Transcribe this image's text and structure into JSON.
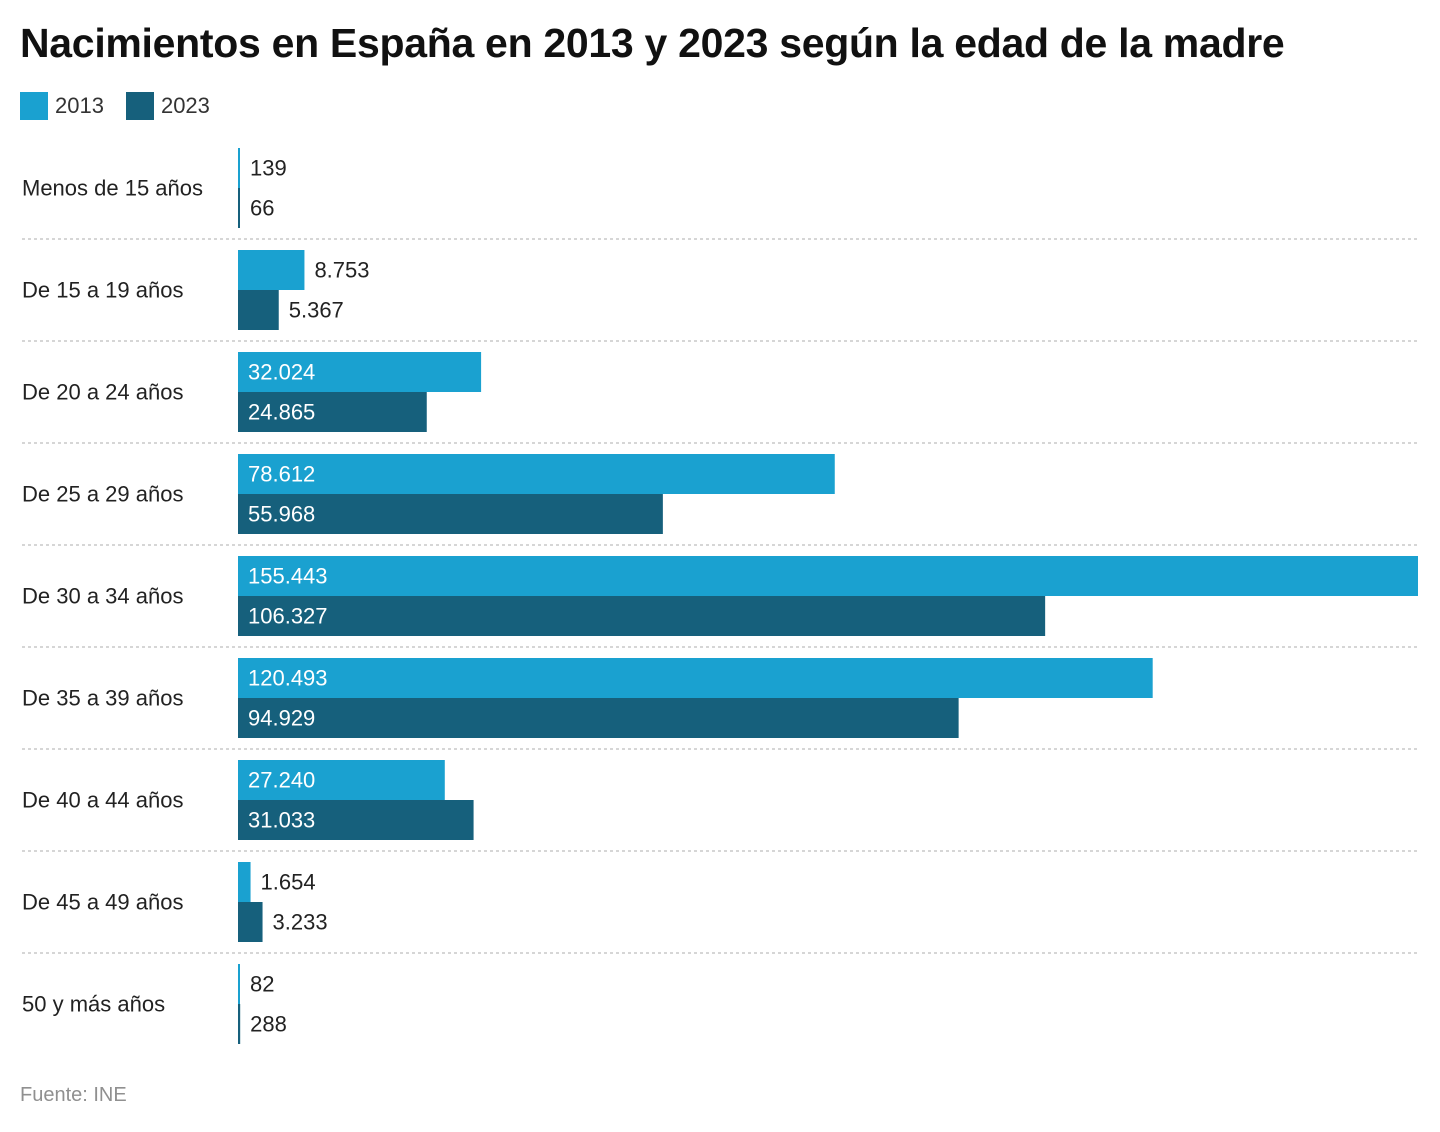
{
  "colors": {
    "series_2013": "#1aa1d0",
    "series_2023": "#16607c"
  },
  "chart_data": {
    "type": "bar",
    "orientation": "horizontal",
    "title": "Nacimientos en España en 2013 y 2023 según la edad de la madre",
    "legend_position": "top-left",
    "grid": false,
    "xlim": [
      0,
      155443
    ],
    "categories": [
      "Menos de 15 años",
      "De 15 a 19 años",
      "De 20 a 24 años",
      "De 25 a 29 años",
      "De 30 a 34 años",
      "De 35 a 39 años",
      "De 40 a 44 años",
      "De 45 a 49 años",
      "50 y más años"
    ],
    "series": [
      {
        "name": "2013",
        "values": [
          139,
          8753,
          32024,
          78612,
          155443,
          120493,
          27240,
          1654,
          82
        ],
        "labels": [
          "139",
          "8.753",
          "32.024",
          "78.612",
          "155.443",
          "120.493",
          "27.240",
          "1.654",
          "82"
        ]
      },
      {
        "name": "2023",
        "values": [
          66,
          5367,
          24865,
          55968,
          106327,
          94929,
          31033,
          3233,
          288
        ],
        "labels": [
          "66",
          "5.367",
          "24.865",
          "55.968",
          "106.327",
          "94.929",
          "31.033",
          "3.233",
          "288"
        ]
      }
    ]
  },
  "source": "Fuente: INE"
}
